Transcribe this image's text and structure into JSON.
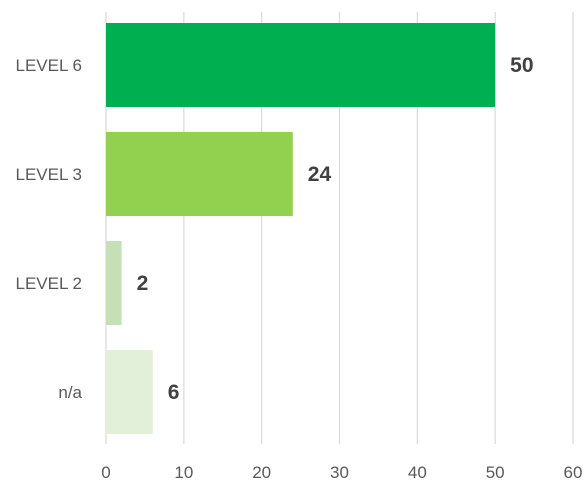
{
  "chart_data": {
    "type": "bar",
    "orientation": "horizontal",
    "categories": [
      "LEVEL 6",
      "LEVEL 3",
      "LEVEL 2",
      "n/a"
    ],
    "values": [
      50,
      24,
      2,
      6
    ],
    "colors": [
      "#00b050",
      "#92d050",
      "#c5e0b4",
      "#e2f0d9"
    ],
    "xlim": [
      0,
      60
    ],
    "xticks": [
      0,
      10,
      20,
      30,
      40,
      50,
      60
    ],
    "grid": true,
    "data_labels": true
  }
}
